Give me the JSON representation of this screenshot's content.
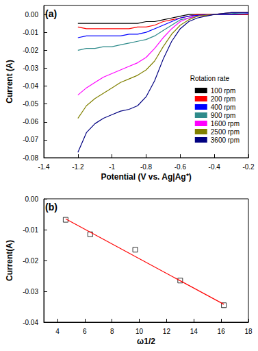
{
  "chart_data": [
    {
      "type": "line",
      "title": "(a)",
      "legend_title": "Rotation rate",
      "x_label": "Potential (V vs. Ag|Ag⁺)",
      "y_label": "Current (A)",
      "x": [
        -0.2,
        -0.3,
        -0.4,
        -0.5,
        -0.55,
        -0.6,
        -0.65,
        -0.7,
        -0.75,
        -0.8,
        -0.85,
        -0.9,
        -0.95,
        -1.0,
        -1.05,
        -1.1,
        -1.15,
        -1.2
      ],
      "series": [
        {
          "name": "100 rpm",
          "color": "#000000",
          "values": [
            0,
            0,
            0,
            0,
            0,
            -0.001,
            -0.002,
            -0.003,
            -0.004,
            -0.004,
            -0.005,
            -0.005,
            -0.005,
            -0.005,
            -0.005,
            -0.005,
            -0.005,
            -0.005
          ]
        },
        {
          "name": "200 rpm",
          "color": "#ff0000",
          "values": [
            0,
            0,
            0,
            0,
            -0.001,
            -0.002,
            -0.003,
            -0.004,
            -0.006,
            -0.007,
            -0.007,
            -0.008,
            -0.008,
            -0.008,
            -0.008,
            -0.008,
            -0.008,
            -0.007
          ]
        },
        {
          "name": "400 rpm",
          "color": "#0000ff",
          "values": [
            0.0005,
            0,
            0,
            -0.0005,
            -0.001,
            -0.002,
            -0.004,
            -0.006,
            -0.008,
            -0.01,
            -0.011,
            -0.011,
            -0.012,
            -0.012,
            -0.012,
            -0.012,
            -0.012,
            -0.013
          ]
        },
        {
          "name": "900 rpm",
          "color": "#2e8b8b",
          "values": [
            0.001,
            0.0005,
            0,
            -0.001,
            -0.002,
            -0.003,
            -0.006,
            -0.009,
            -0.012,
            -0.014,
            -0.015,
            -0.016,
            -0.017,
            -0.018,
            -0.018,
            -0.019,
            -0.019,
            -0.02
          ]
        },
        {
          "name": "1600 rpm",
          "color": "#ff00ff",
          "values": [
            0.001,
            0.001,
            0,
            -0.001,
            -0.002,
            -0.004,
            -0.008,
            -0.013,
            -0.019,
            -0.024,
            -0.027,
            -0.029,
            -0.031,
            -0.033,
            -0.035,
            -0.038,
            -0.041,
            -0.045
          ]
        },
        {
          "name": "2500 rpm",
          "color": "#808000",
          "values": [
            0.001,
            0.001,
            0,
            -0.001,
            -0.003,
            -0.006,
            -0.011,
            -0.018,
            -0.026,
            -0.031,
            -0.034,
            -0.036,
            -0.038,
            -0.041,
            -0.044,
            -0.047,
            -0.051,
            -0.058
          ]
        },
        {
          "name": "3600 rpm",
          "color": "#000080",
          "values": [
            0.001,
            0.001,
            0,
            -0.002,
            -0.004,
            -0.008,
            -0.015,
            -0.025,
            -0.037,
            -0.046,
            -0.051,
            -0.053,
            -0.054,
            -0.056,
            -0.058,
            -0.061,
            -0.066,
            -0.077
          ]
        }
      ],
      "xlim": [
        -1.4,
        -0.2
      ],
      "xticks": [
        -1.4,
        -1.2,
        -1.0,
        -0.8,
        -0.6,
        -0.4,
        -0.2
      ],
      "ylim": [
        -0.08,
        0.005
      ],
      "yticks": [
        {
          "value": -0.08,
          "label": "-0.08"
        },
        {
          "value": -0.07,
          "label": "-0.07"
        },
        {
          "value": -0.06,
          "label": "-0.06"
        },
        {
          "value": -0.05,
          "label": "-0.05"
        },
        {
          "value": -0.04,
          "label": "-0.04"
        },
        {
          "value": -0.03,
          "label": "-0.03"
        },
        {
          "value": -0.02,
          "label": "-0.02"
        },
        {
          "value": -0.01,
          "label": "-0.01"
        },
        {
          "value": 0,
          "label": "0.00"
        }
      ],
      "grid": false,
      "legend": "lower right"
    },
    {
      "type": "scatter",
      "title": "(b)",
      "x_label": "ω1/2",
      "y_label": "Current(A)",
      "series": [
        {
          "type": "scatter",
          "marker": "square_open",
          "color": "#000000",
          "x": [
            4.6,
            6.4,
            9.7,
            13.0,
            16.2
          ],
          "values": [
            -0.0068,
            -0.0115,
            -0.0165,
            -0.0265,
            -0.0345
          ]
        },
        {
          "type": "line",
          "color": "#ff0000",
          "x": [
            4.6,
            16.2
          ],
          "values": [
            -0.0065,
            -0.0342
          ]
        }
      ],
      "xlim": [
        3,
        18
      ],
      "xticks": [
        4,
        6,
        8,
        10,
        12,
        14,
        16,
        18
      ],
      "ylim": [
        -0.04,
        0.0
      ],
      "yticks": [
        {
          "value": -0.04,
          "label": "-0.04"
        },
        {
          "value": -0.03,
          "label": "-0.03"
        },
        {
          "value": -0.02,
          "label": "-0.02"
        },
        {
          "value": -0.01,
          "label": "-0.01"
        },
        {
          "value": 0,
          "label": "0.00"
        }
      ],
      "grid": false
    }
  ]
}
